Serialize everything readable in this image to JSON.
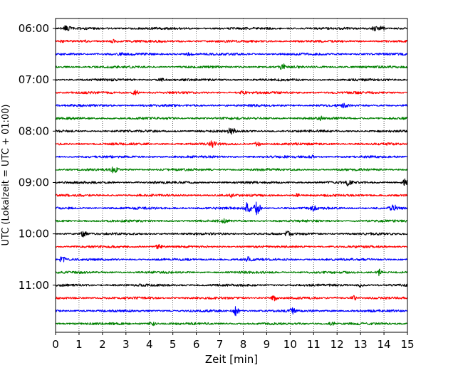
{
  "chart_data": {
    "type": "line",
    "xlabel": "Zeit  [min]",
    "ylabel": "UTC (Lokalzeit = UTC + 01:00)",
    "xlim": [
      0,
      15
    ],
    "x_ticks": [
      "0",
      "1",
      "2",
      "3",
      "4",
      "5",
      "6",
      "7",
      "8",
      "9",
      "10",
      "11",
      "12",
      "13",
      "14",
      "15"
    ],
    "y_tick_labels": [
      "06:00",
      "07:00",
      "08:00",
      "09:00",
      "10:00",
      "11:00"
    ],
    "grid": "vertical dotted",
    "trace_interval_min": 15,
    "trace_color_cycle": [
      "#000000",
      "#ff0000",
      "#0000ff",
      "#008000"
    ],
    "traces": [
      {
        "start": "06:00",
        "color": "#000000",
        "events": [
          {
            "t": 0.5,
            "amp": 5
          },
          {
            "t": 13.6,
            "amp": 3
          },
          {
            "t": 13.9,
            "amp": 3
          }
        ]
      },
      {
        "start": "06:15",
        "color": "#ff0000",
        "events": [
          {
            "t": 1.2,
            "amp": 2
          },
          {
            "t": 2.5,
            "amp": 2
          }
        ]
      },
      {
        "start": "06:30",
        "color": "#0000ff",
        "events": [
          {
            "t": 2.8,
            "amp": 2
          },
          {
            "t": 5.7,
            "amp": 2
          }
        ]
      },
      {
        "start": "06:45",
        "color": "#008000",
        "events": [
          {
            "t": 9.7,
            "amp": 4
          }
        ]
      },
      {
        "start": "07:00",
        "color": "#000000",
        "events": [
          {
            "t": 4.5,
            "amp": 2
          }
        ]
      },
      {
        "start": "07:15",
        "color": "#ff0000",
        "events": [
          {
            "t": 3.4,
            "amp": 3
          },
          {
            "t": 8.0,
            "amp": 2
          }
        ]
      },
      {
        "start": "07:30",
        "color": "#0000ff",
        "events": [
          {
            "t": 12.3,
            "amp": 2
          }
        ]
      },
      {
        "start": "07:45",
        "color": "#008000",
        "events": [
          {
            "t": 11.3,
            "amp": 2
          }
        ]
      },
      {
        "start": "08:00",
        "color": "#000000",
        "events": [
          {
            "t": 7.5,
            "amp": 6
          }
        ]
      },
      {
        "start": "08:15",
        "color": "#ff0000",
        "events": [
          {
            "t": 6.7,
            "amp": 4
          },
          {
            "t": 8.6,
            "amp": 3
          }
        ]
      },
      {
        "start": "08:30",
        "color": "#0000ff",
        "events": [
          {
            "t": 10.9,
            "amp": 2
          }
        ]
      },
      {
        "start": "08:45",
        "color": "#008000",
        "events": [
          {
            "t": 2.5,
            "amp": 4
          }
        ]
      },
      {
        "start": "09:00",
        "color": "#000000",
        "events": [
          {
            "t": 12.5,
            "amp": 5
          },
          {
            "t": 14.9,
            "amp": 4
          }
        ]
      },
      {
        "start": "09:15",
        "color": "#ff0000",
        "events": [
          {
            "t": 7.5,
            "amp": 2
          },
          {
            "t": 10.3,
            "amp": 2
          }
        ]
      },
      {
        "start": "09:30",
        "color": "#0000ff",
        "events": [
          {
            "t": 8.2,
            "amp": 8
          },
          {
            "t": 8.6,
            "amp": 9
          },
          {
            "t": 11.0,
            "amp": 3
          },
          {
            "t": 14.4,
            "amp": 5
          }
        ]
      },
      {
        "start": "09:45",
        "color": "#008000",
        "events": [
          {
            "t": 7.2,
            "amp": 2
          }
        ]
      },
      {
        "start": "10:00",
        "color": "#000000",
        "events": [
          {
            "t": 1.2,
            "amp": 4
          },
          {
            "t": 9.9,
            "amp": 3
          }
        ]
      },
      {
        "start": "10:15",
        "color": "#ff0000",
        "events": [
          {
            "t": 4.4,
            "amp": 3
          }
        ]
      },
      {
        "start": "10:30",
        "color": "#0000ff",
        "events": [
          {
            "t": 0.3,
            "amp": 4
          },
          {
            "t": 8.2,
            "amp": 5
          }
        ]
      },
      {
        "start": "10:45",
        "color": "#008000",
        "events": [
          {
            "t": 13.8,
            "amp": 4
          }
        ]
      },
      {
        "start": "11:00",
        "color": "#000000",
        "events": [
          {
            "t": 13.0,
            "amp": 2
          }
        ]
      },
      {
        "start": "11:15",
        "color": "#ff0000",
        "events": [
          {
            "t": 9.3,
            "amp": 4
          },
          {
            "t": 12.7,
            "amp": 3
          }
        ]
      },
      {
        "start": "11:30",
        "color": "#0000ff",
        "events": [
          {
            "t": 7.7,
            "amp": 6
          },
          {
            "t": 10.1,
            "amp": 3
          }
        ]
      },
      {
        "start": "11:45",
        "color": "#008000",
        "events": [
          {
            "t": 4.1,
            "amp": 4
          },
          {
            "t": 11.8,
            "amp": 3
          }
        ]
      }
    ]
  }
}
